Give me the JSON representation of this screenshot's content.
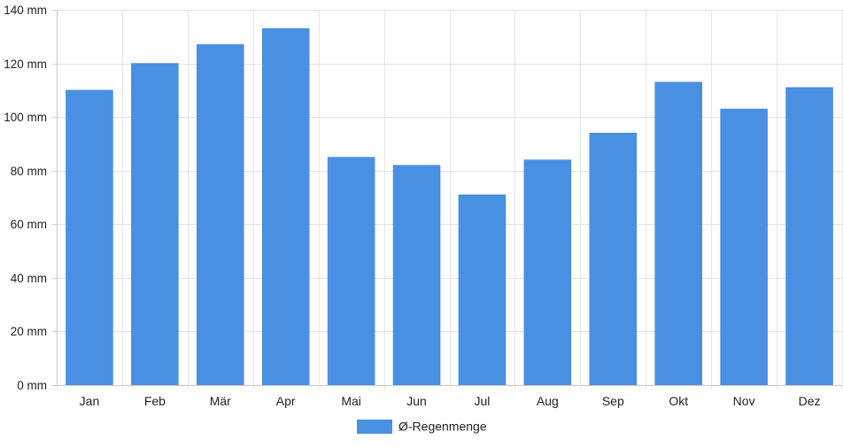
{
  "chart_data": {
    "type": "bar",
    "title": "",
    "xlabel": "",
    "ylabel": "",
    "categories": [
      "Jan",
      "Feb",
      "Mär",
      "Apr",
      "Mai",
      "Jun",
      "Jul",
      "Aug",
      "Sep",
      "Okt",
      "Nov",
      "Dez"
    ],
    "series": [
      {
        "name": "Ø-Regenmenge",
        "color": "#4a90e2",
        "values": [
          110,
          120,
          127,
          133,
          85,
          82,
          71,
          84,
          94,
          113,
          103,
          111
        ]
      }
    ],
    "ylim": [
      0,
      140
    ],
    "yticks": [
      0,
      20,
      40,
      60,
      80,
      100,
      120,
      140
    ],
    "yticks_labels": [
      "0 mm",
      "20 mm",
      "40 mm",
      "60 mm",
      "80 mm",
      "100 mm",
      "120 mm",
      "140 mm"
    ],
    "grid": true,
    "legend": "bottom-center"
  }
}
